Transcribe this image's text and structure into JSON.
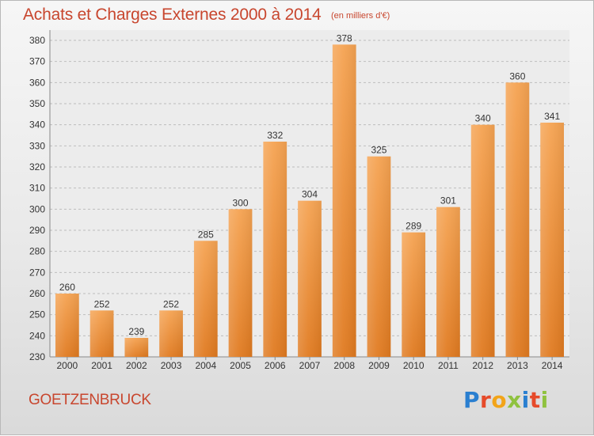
{
  "chart_data": {
    "type": "bar",
    "title": "Achats et Charges Externes 2000 à 2014",
    "unit_note": "(en milliers d'€)",
    "categories": [
      "2000",
      "2001",
      "2002",
      "2003",
      "2004",
      "2005",
      "2006",
      "2007",
      "2008",
      "2009",
      "2010",
      "2011",
      "2012",
      "2013",
      "2014"
    ],
    "values": [
      260,
      252,
      239,
      252,
      285,
      300,
      332,
      304,
      378,
      325,
      289,
      301,
      340,
      360,
      341
    ],
    "ylim": [
      230,
      380
    ],
    "yticks": [
      230,
      240,
      250,
      260,
      270,
      280,
      290,
      300,
      310,
      320,
      330,
      340,
      350,
      360,
      370,
      380
    ],
    "grid": true,
    "bar_color_top": "#f5a352",
    "bar_color_bottom": "#e07a20"
  },
  "footer": {
    "commune": "GOETZENBRUCK",
    "logo_text": "Proxiti"
  }
}
